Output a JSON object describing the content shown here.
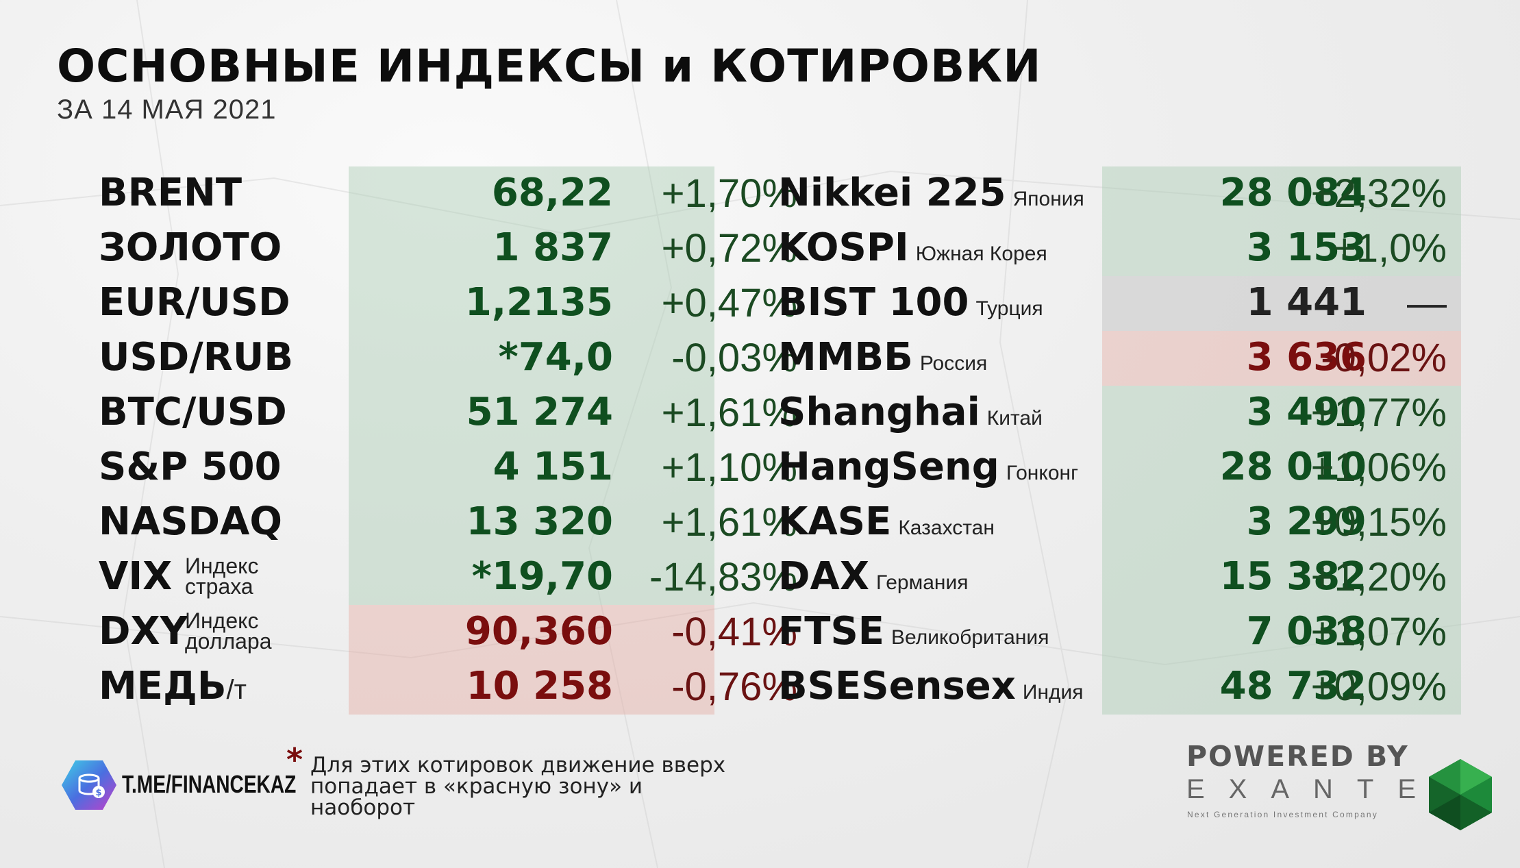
{
  "header": {
    "title": "ОСНОВНЫЕ ИНДЕКСЫ и КОТИРОВКИ",
    "subtitle": "ЗА 14 МАЯ 2021"
  },
  "colors": {
    "green_zone": "#aacdb4",
    "red_zone": "#e4aaa0",
    "neutral_zone": "#bebebe",
    "green_value": "#0f4f1f",
    "red_value": "#7a0e0e"
  },
  "left_table": [
    {
      "name": "BRENT",
      "value": "68,22",
      "change": "+1,70%",
      "zone": "green"
    },
    {
      "name": "ЗОЛОТО",
      "value": "1 837",
      "change": "+0,72%",
      "zone": "green"
    },
    {
      "name": "EUR/USD",
      "value": "1,2135",
      "change": "+0,47%",
      "zone": "green"
    },
    {
      "name": "USD/RUB",
      "value": "*74,0",
      "change": "-0,03%",
      "zone": "green"
    },
    {
      "name": "BTC/USD",
      "value": "51 274",
      "change": "+1,61%",
      "zone": "green"
    },
    {
      "name": "S&P 500",
      "value": "4 151",
      "change": "+1,10%",
      "zone": "green"
    },
    {
      "name": "NASDAQ",
      "value": "13 320",
      "change": "+1,61%",
      "zone": "green"
    },
    {
      "name": "VIX",
      "note": "Индекс страха",
      "value": "*19,70",
      "change": "-14,83%",
      "zone": "green"
    },
    {
      "name": "DXY",
      "note": "Индекс доллара",
      "value": "90,360",
      "change": "-0,41%",
      "zone": "red"
    },
    {
      "name": "МЕДЬ",
      "unit": "/т",
      "value": "10 258",
      "change": "-0,76%",
      "zone": "red"
    }
  ],
  "right_table": [
    {
      "name": "Nikkei 225",
      "country": "Япония",
      "value": "28 084",
      "change": "+2,32%",
      "zone": "green"
    },
    {
      "name": "KOSPI",
      "country": "Южная Корея",
      "value": "3 153",
      "change": "+1,0%",
      "zone": "green"
    },
    {
      "name": "BIST 100",
      "country": "Турция",
      "value": "1 441",
      "change": "—",
      "zone": "gray"
    },
    {
      "name": "ММВБ",
      "country": "Россия",
      "value": "3 636",
      "change": "-0,02%",
      "zone": "red"
    },
    {
      "name": "Shanghai",
      "country": "Китай",
      "value": "3 490",
      "change": "+1,77%",
      "zone": "green"
    },
    {
      "name": "HangSeng",
      "country": "Гонконг",
      "value": "28 010",
      "change": "+1,06%",
      "zone": "green"
    },
    {
      "name": "KASE",
      "country": "Казахстан",
      "value": "3 299",
      "change": "+0,15%",
      "zone": "green"
    },
    {
      "name": "DAX",
      "country": "Германия",
      "value": "15 382",
      "change": "+1,20%",
      "zone": "green"
    },
    {
      "name": "FTSE",
      "country": "Великобритания",
      "value": "7 038",
      "change": "+1,07%",
      "zone": "green"
    },
    {
      "name": "BSESensex",
      "country": "Индия",
      "value": "48 732",
      "change": "+0,09%",
      "zone": "green"
    }
  ],
  "footer": {
    "channel": "T.ME/FINANCEKAZ",
    "star": "*",
    "footnote": "Для этих котировок движение вверх попадает в «красную зону» и наоборот",
    "powered_by": "POWERED BY",
    "brand": "EXANTE",
    "tagline": "Next Generation Investment Company"
  }
}
